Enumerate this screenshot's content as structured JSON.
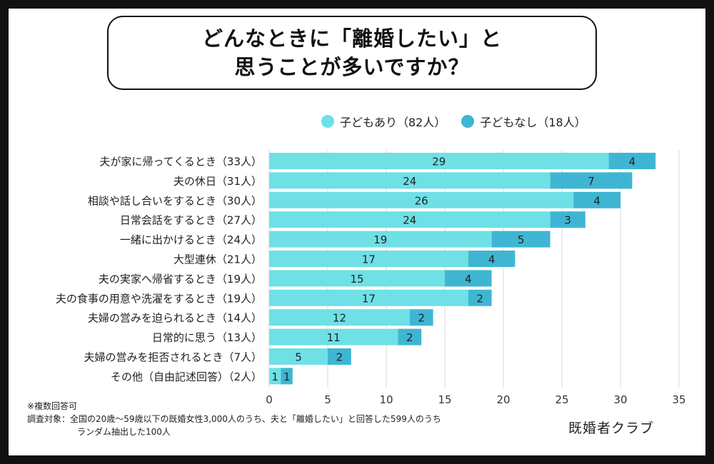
{
  "title": {
    "line1": "どんなときに「離婚したい」と",
    "line2": "思うことが多いですか？"
  },
  "legend": [
    {
      "label": "子どもあり（82人）",
      "color": "#6ee0e6"
    },
    {
      "label": "子どもなし（18人）",
      "color": "#3eb6d3"
    }
  ],
  "footnotes": {
    "note": "※複数回答可",
    "target_label": "調査対象：",
    "target_line1": "全国の20歳〜59歳以下の既婚女性3,000人のうち、夫と「離婚したい」と回答した599人のうち",
    "target_line2": "ランダム抽出した100人"
  },
  "brand": "既婚者クラブ",
  "chart_data": {
    "type": "bar",
    "orientation": "horizontal",
    "stacked": true,
    "categories": [
      "夫が家に帰ってくるとき（33人）",
      "夫の休日（31人）",
      "相談や話し合いをするとき（30人）",
      "日常会話をするとき（27人）",
      "一緒に出かけるとき（24人）",
      "大型連休（21人）",
      "夫の実家へ帰省するとき（19人）",
      "夫の食事の用意や洗濯をするとき（19人）",
      "夫婦の営みを迫られるとき（14人）",
      "日常的に思う（13人）",
      "夫婦の営みを拒否されるとき（7人）",
      "その他（自由記述回答）（2人）"
    ],
    "series": [
      {
        "name": "子どもあり（82人）",
        "color": "#6ee0e6",
        "values": [
          29,
          24,
          26,
          24,
          19,
          17,
          15,
          17,
          12,
          11,
          5,
          1
        ]
      },
      {
        "name": "子どもなし（18人）",
        "color": "#3eb6d3",
        "values": [
          4,
          7,
          4,
          3,
          5,
          4,
          4,
          2,
          2,
          2,
          2,
          1
        ]
      }
    ],
    "xlim": [
      0,
      35
    ],
    "xticks": [
      0,
      5,
      10,
      15,
      20,
      25,
      30,
      35
    ],
    "grid": "vertical",
    "legend_position": "top"
  }
}
